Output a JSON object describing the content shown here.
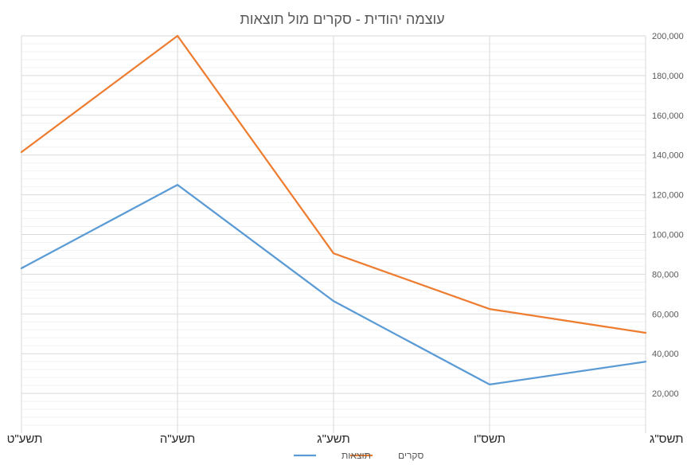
{
  "chart_data": {
    "type": "line",
    "title": "עוצמה יהודית - סקרים מול תוצאות",
    "categories": [
      "תשע\"ט",
      "תשע\"ה",
      "תשע\"ג",
      "תשס\"ו",
      "תשס\"ג"
    ],
    "series": [
      {
        "name": "סקרים",
        "color": "#ED7D31",
        "values": [
          141500,
          200000,
          90500,
          62500,
          50500
        ]
      },
      {
        "name": "תוצאות",
        "color": "#5B9BD5",
        "values": [
          83000,
          125000,
          66500,
          24500,
          36000
        ]
      }
    ],
    "ylim": [
      0,
      200000
    ],
    "y_ticks": [
      "20,000",
      "40,000",
      "60,000",
      "80,000",
      "100,000",
      "120,000",
      "140,000",
      "160,000",
      "180,000",
      "200,000"
    ],
    "y_tick_values": [
      20000,
      40000,
      60000,
      80000,
      100000,
      120000,
      140000,
      160000,
      180000,
      200000
    ],
    "y_axis_side": "right",
    "grid": true,
    "legend": "bottom",
    "legend_order": [
      "סקרים",
      "תוצאות"
    ]
  }
}
